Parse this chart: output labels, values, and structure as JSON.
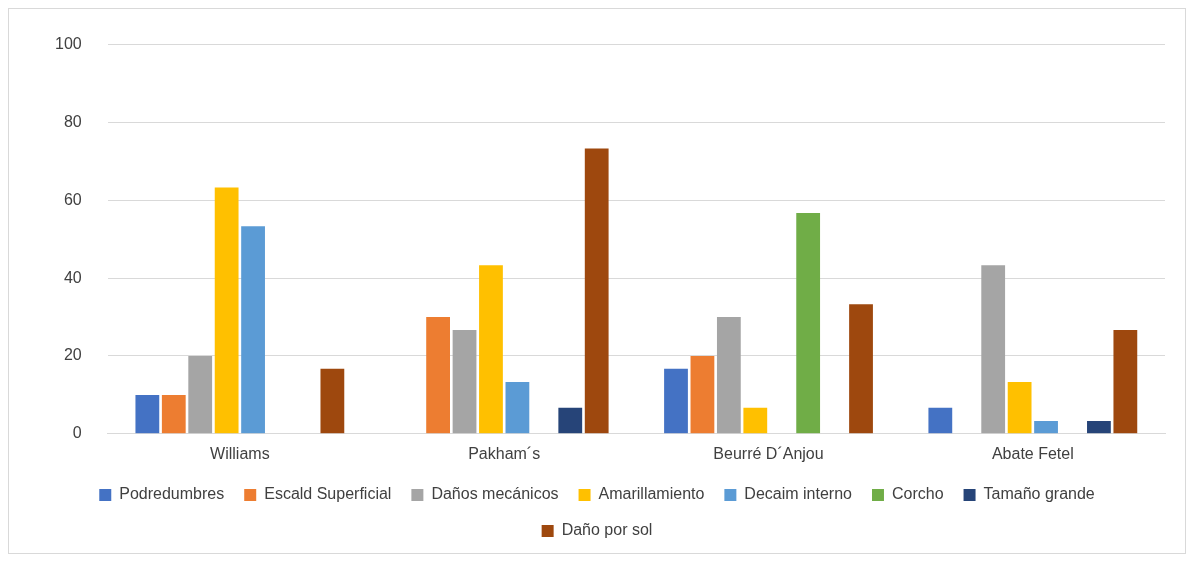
{
  "chart_data": {
    "type": "bar",
    "categories": [
      "Williams",
      "Pakham´s",
      "Beurré D´Anjou",
      "Abate Fetel"
    ],
    "series": [
      {
        "name": "Podredumbres",
        "color": "#4472c4",
        "values": [
          10,
          0,
          16.7,
          6.7
        ]
      },
      {
        "name": "Escald Superficial",
        "color": "#ed7d31",
        "values": [
          10,
          30,
          20,
          0
        ]
      },
      {
        "name": "Daños mecánicos",
        "color": "#a5a5a5",
        "values": [
          20,
          26.7,
          30,
          43.3
        ]
      },
      {
        "name": "Amarillamiento",
        "color": "#ffc000",
        "values": [
          63.3,
          43.3,
          6.7,
          13.3
        ]
      },
      {
        "name": "Decaim interno",
        "color": "#5b9bd5",
        "values": [
          53.3,
          13.3,
          0,
          3.3
        ]
      },
      {
        "name": "Corcho",
        "color": "#70ad47",
        "values": [
          0,
          0,
          56.7,
          0
        ]
      },
      {
        "name": "Tamaño grande",
        "color": "#264478",
        "values": [
          0,
          6.7,
          0,
          3.3
        ]
      },
      {
        "name": "Daño por sol",
        "color": "#9e480e",
        "values": [
          16.7,
          73.3,
          33.3,
          26.7
        ]
      }
    ],
    "ylim": [
      0,
      100
    ],
    "yticks": [
      0,
      20,
      40,
      60,
      80,
      100
    ],
    "grid": "y",
    "legend": "bottom"
  }
}
